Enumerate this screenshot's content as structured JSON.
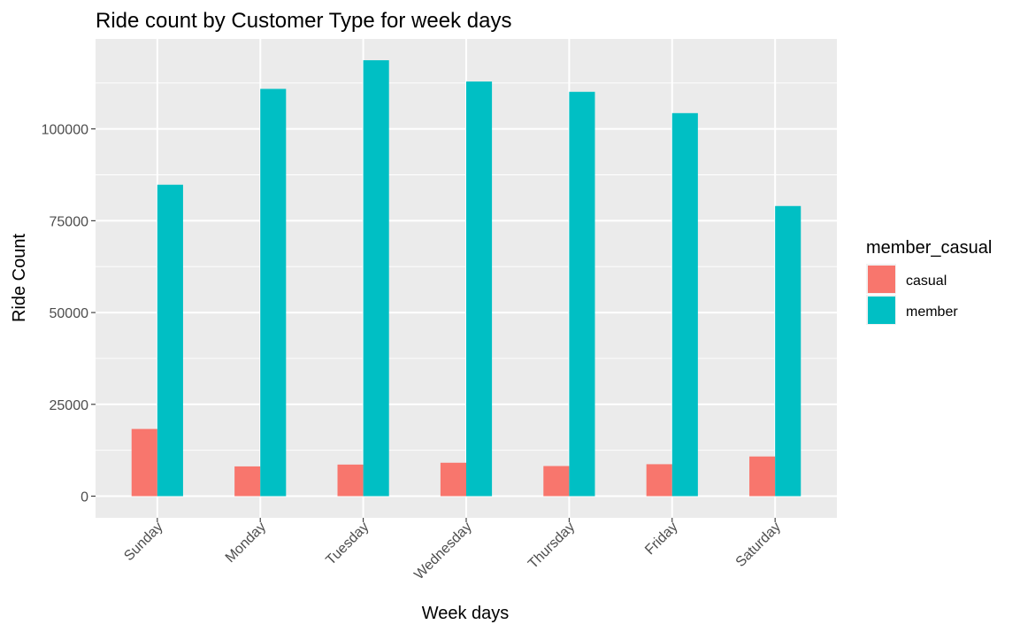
{
  "chart_data": {
    "type": "bar",
    "title": "Ride count by Customer Type for week days",
    "xlabel": "Week days",
    "ylabel": "Ride Count",
    "categories": [
      "Sunday",
      "Monday",
      "Tuesday",
      "Wednesday",
      "Thursday",
      "Friday",
      "Saturday"
    ],
    "series": [
      {
        "name": "casual",
        "color": "#F8766D",
        "values": [
          18300,
          8100,
          8600,
          9100,
          8200,
          8700,
          10800
        ]
      },
      {
        "name": "member",
        "color": "#00BFC4",
        "values": [
          84800,
          110900,
          118700,
          112900,
          110100,
          104300,
          79000
        ]
      }
    ],
    "ylim": [
      -5900,
      124500
    ],
    "yticks": [
      0,
      25000,
      50000,
      75000,
      100000
    ],
    "ytick_labels": [
      "0",
      "25000",
      "50000",
      "75000",
      "100000"
    ],
    "grid": true,
    "legend": {
      "title": "member_casual",
      "position": "right"
    },
    "colors": {
      "panel_background": "#EBEBEB",
      "grid_line": "#FFFFFF",
      "tick_text": "#4D4D4D"
    }
  }
}
